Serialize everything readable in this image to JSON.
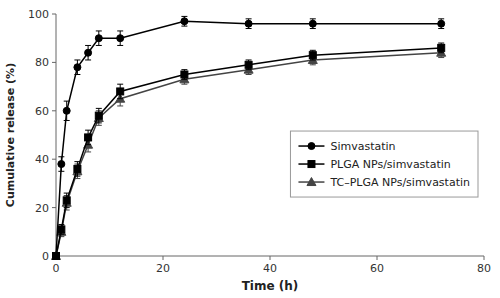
{
  "chart_data": {
    "type": "line",
    "xlabel": "Time (h)",
    "ylabel": "Cumulative release (%)",
    "x": [
      0,
      1,
      2,
      4,
      6,
      8,
      12,
      24,
      36,
      48,
      72
    ],
    "xlim": [
      0,
      80
    ],
    "ylim": [
      0,
      100
    ],
    "xticks": [
      0,
      20,
      40,
      60,
      80
    ],
    "yticks": [
      0,
      20,
      40,
      60,
      80,
      100
    ],
    "grid": false,
    "legend": "right",
    "series": [
      {
        "name": "Simvastatin",
        "color": "#000000",
        "marker": "circle",
        "values": [
          0,
          38,
          60,
          78,
          84,
          90,
          90,
          97,
          96,
          96,
          96
        ],
        "yerr": [
          0,
          3,
          4,
          3,
          3,
          3,
          3,
          2,
          2,
          2,
          2
        ]
      },
      {
        "name": "PLGA NPs/simvastatin",
        "color": "#000000",
        "marker": "square",
        "values": [
          0,
          11,
          23,
          36,
          49,
          58,
          68,
          75,
          79,
          83,
          86
        ],
        "yerr": [
          0,
          2,
          3,
          3,
          3,
          3,
          3,
          2,
          2,
          2,
          2
        ]
      },
      {
        "name": "TC–PLGA NPs/simvastatin",
        "color": "#444444",
        "marker": "triangle",
        "values": [
          0,
          10,
          22,
          35,
          46,
          57,
          65,
          73,
          77,
          81,
          84
        ],
        "yerr": [
          0,
          2,
          3,
          3,
          3,
          3,
          3,
          2,
          2,
          2,
          2
        ]
      }
    ]
  }
}
